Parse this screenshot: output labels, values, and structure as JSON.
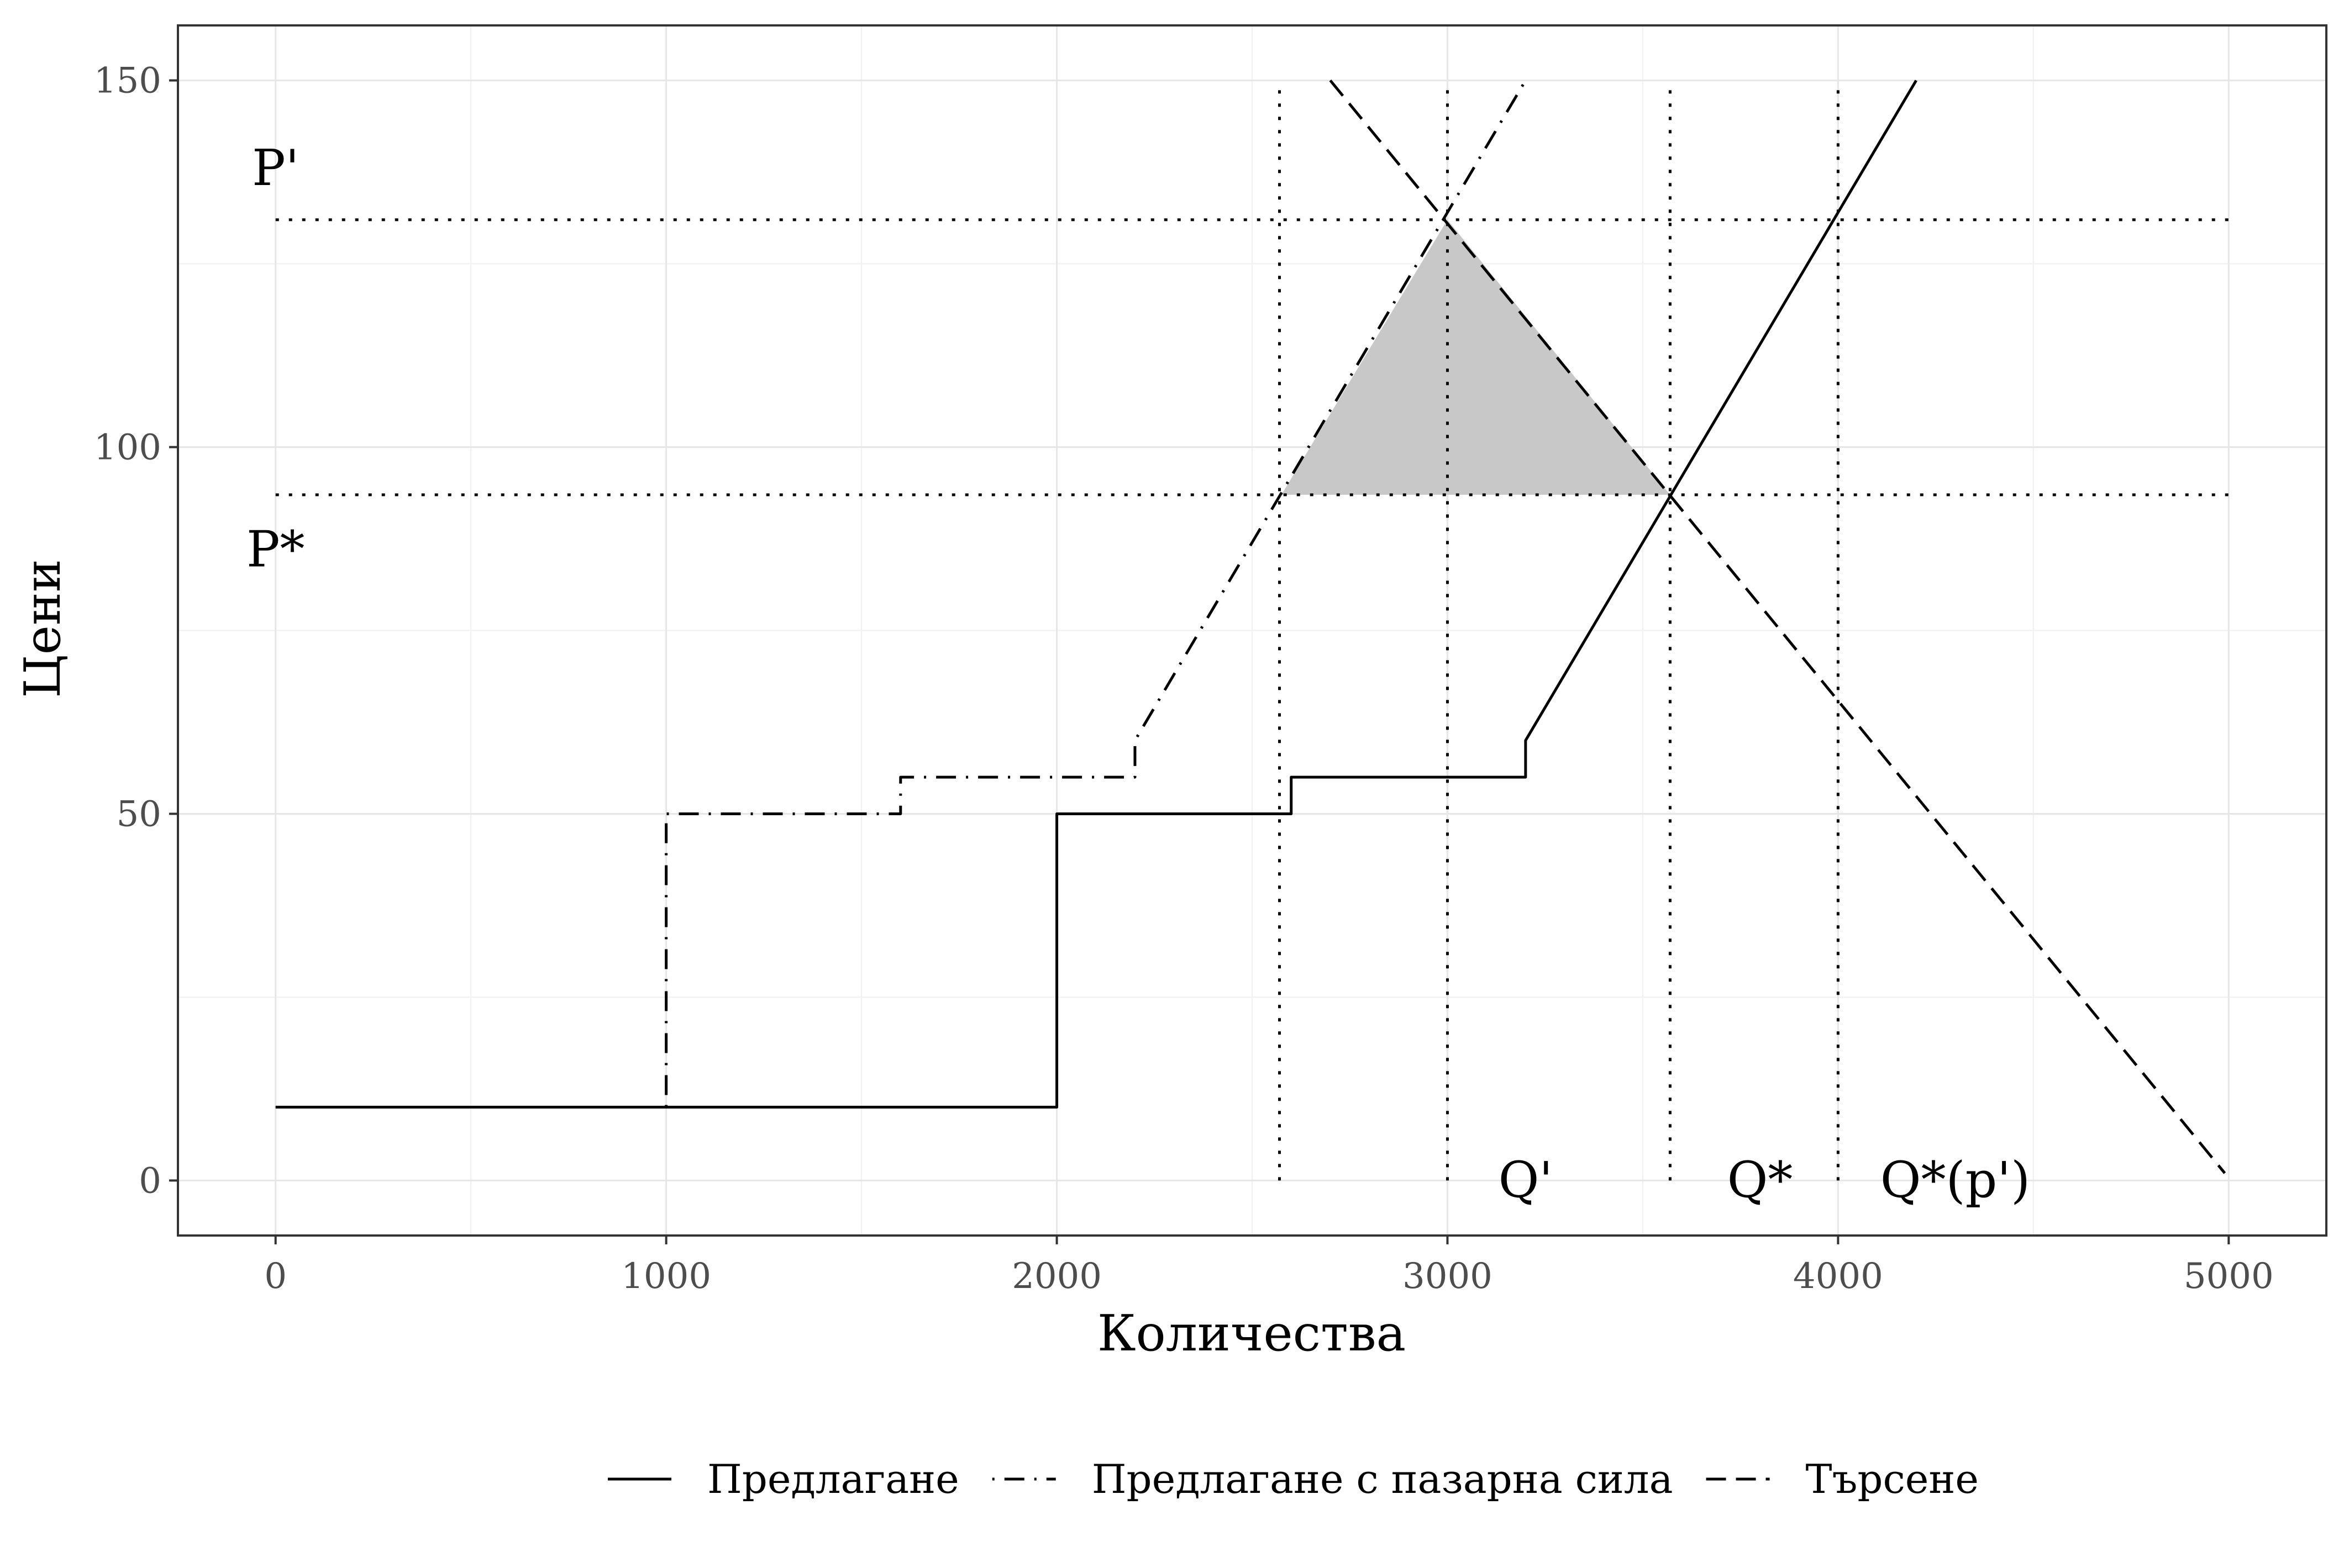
{
  "chart_data": {
    "type": "line",
    "title": "",
    "xlabel": "Количества",
    "ylabel": "Цени",
    "xlim": [
      -250,
      5250
    ],
    "ylim": [
      -7.5,
      157.5
    ],
    "x_ticks": [
      0,
      1000,
      2000,
      3000,
      4000,
      5000
    ],
    "y_ticks": [
      0,
      50,
      100,
      150
    ],
    "grid": true,
    "legend_position": "bottom",
    "series": [
      {
        "name": "Предлагане",
        "line_style": "solid",
        "color": "#000000",
        "points": [
          [
            0,
            10
          ],
          [
            2000,
            10
          ],
          [
            2000,
            50
          ],
          [
            2600,
            50
          ],
          [
            2600,
            55
          ],
          [
            3200,
            55
          ],
          [
            3200,
            60
          ],
          [
            4200,
            150
          ]
        ]
      },
      {
        "name": "Предлагане с пазарна сила",
        "line_style": "dotdash",
        "color": "#000000",
        "points": [
          [
            1000,
            10
          ],
          [
            1000,
            50
          ],
          [
            1600,
            50
          ],
          [
            1600,
            55
          ],
          [
            2200,
            55
          ],
          [
            2200,
            60
          ],
          [
            3200,
            150
          ]
        ]
      },
      {
        "name": "Търсене",
        "line_style": "dashed",
        "color": "#000000",
        "points": [
          [
            2700,
            150
          ],
          [
            4990,
            1
          ]
        ]
      }
    ],
    "horizontal_reference_lines": [
      {
        "y": 131,
        "x_from": 0,
        "x_to": 5000,
        "style": "dotted"
      },
      {
        "y": 93.5,
        "x_from": 0,
        "x_to": 5000,
        "style": "dotted"
      }
    ],
    "vertical_reference_lines": [
      {
        "x": 2570,
        "y_from": 0,
        "y_to": 149,
        "style": "dotted"
      },
      {
        "x": 3000,
        "y_from": 0,
        "y_to": 149,
        "style": "dotted"
      },
      {
        "x": 3570,
        "y_from": 0,
        "y_to": 149,
        "style": "dotted"
      },
      {
        "x": 4000,
        "y_from": 0,
        "y_to": 149,
        "style": "dotted"
      }
    ],
    "shaded_region": {
      "color": "#c8c8c8",
      "points": [
        [
          3000,
          131
        ],
        [
          2575,
          93.5
        ],
        [
          3570,
          93.5
        ]
      ]
    },
    "annotations": [
      {
        "text": "P'",
        "x": 0,
        "y": 138
      },
      {
        "text": "P*",
        "x": 0,
        "y": 86
      },
      {
        "text": "Q'",
        "x": 3200,
        "y": 0
      },
      {
        "text": "Q*",
        "x": 3800,
        "y": 0
      },
      {
        "text": "Q*(p')",
        "x": 4300,
        "y": 0
      }
    ]
  }
}
